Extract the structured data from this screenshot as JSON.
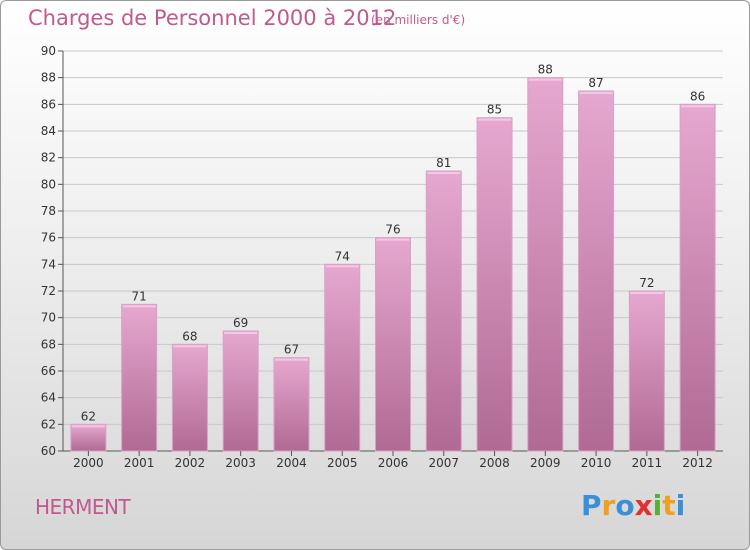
{
  "title": "Charges de Personnel 2000 à 2012",
  "subtitle": "(en milliers d'€)",
  "place": "HERMENT",
  "logo": {
    "letters": [
      {
        "char": "P",
        "color": "#3a8fd6"
      },
      {
        "char": "r",
        "color": "#f0a020"
      },
      {
        "char": "o",
        "color": "#3a8fd6"
      },
      {
        "char": "x",
        "color": "#e03030"
      },
      {
        "char": "i",
        "color": "#58b030"
      },
      {
        "char": "t",
        "color": "#f0a020"
      },
      {
        "char": "i",
        "color": "#3a8fd6"
      }
    ]
  },
  "chart_data": {
    "type": "bar",
    "categories": [
      "2000",
      "2001",
      "2002",
      "2003",
      "2004",
      "2005",
      "2006",
      "2007",
      "2008",
      "2009",
      "2010",
      "2011",
      "2012"
    ],
    "values": [
      62,
      71,
      68,
      69,
      67,
      74,
      76,
      81,
      85,
      88,
      87,
      72,
      86
    ],
    "ylim": [
      60,
      90
    ],
    "yticks": [
      60,
      62,
      64,
      66,
      68,
      70,
      72,
      74,
      76,
      78,
      80,
      82,
      84,
      86,
      88,
      90
    ],
    "grid": true,
    "bar_color_top": "#e6a8d0",
    "bar_color_bottom": "#b06a94"
  }
}
